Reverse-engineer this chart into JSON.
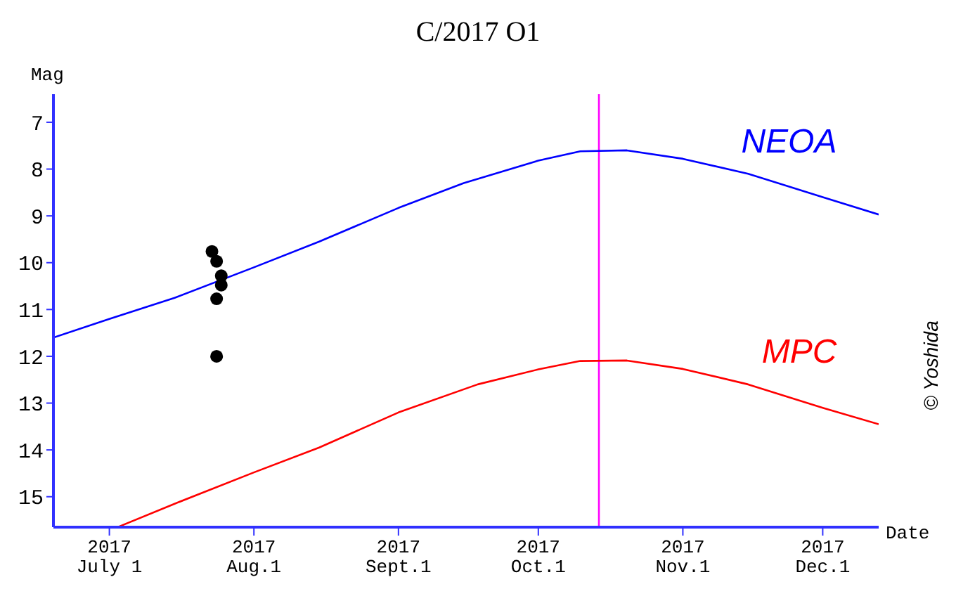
{
  "chart_data": {
    "type": "line",
    "title": "C/2017 O1",
    "xlabel": "Date",
    "ylabel": "Mag",
    "annotations": [
      "© Yoshida"
    ],
    "xlim": [
      "2017-06-19",
      "2017-12-13"
    ],
    "xticks": [
      {
        "value": "2017-07-01",
        "label": "2017 July 1"
      },
      {
        "value": "2017-08-01",
        "label": "2017 Aug.1"
      },
      {
        "value": "2017-09-01",
        "label": "2017 Sept.1"
      },
      {
        "value": "2017-10-01",
        "label": "2017 Oct.1"
      },
      {
        "value": "2017-11-01",
        "label": "2017 Nov.1"
      },
      {
        "value": "2017-12-01",
        "label": "2017 Dec.1"
      }
    ],
    "ylim": [
      15.65,
      6.4
    ],
    "yticks": [
      7,
      8,
      9,
      10,
      11,
      12,
      13,
      14,
      15
    ],
    "grid": false,
    "legend": false,
    "marker": "none",
    "line_style": "solid",
    "ref_lines": [
      {
        "axis": "x",
        "value": "2017-10-14",
        "color": "#ff00ff"
      }
    ],
    "series": [
      {
        "name": "NEOA",
        "color": "#0000ff",
        "x": [
          "2017-06-19",
          "2017-07-01",
          "2017-07-15",
          "2017-08-01",
          "2017-08-15",
          "2017-09-01",
          "2017-09-15",
          "2017-10-01",
          "2017-10-10",
          "2017-10-20",
          "2017-11-01",
          "2017-11-15",
          "2017-12-01",
          "2017-12-13"
        ],
        "values": [
          11.6,
          11.2,
          10.75,
          10.1,
          9.55,
          8.83,
          8.3,
          7.82,
          7.62,
          7.6,
          7.78,
          8.1,
          8.6,
          8.97
        ]
      },
      {
        "name": "MPC",
        "color": "#ff0000",
        "x": [
          "2017-07-03",
          "2017-07-15",
          "2017-08-01",
          "2017-08-15",
          "2017-09-01",
          "2017-09-18",
          "2017-10-01",
          "2017-10-10",
          "2017-10-20",
          "2017-11-01",
          "2017-11-15",
          "2017-12-01",
          "2017-12-13"
        ],
        "values": [
          15.64,
          15.15,
          14.48,
          13.95,
          13.2,
          12.6,
          12.28,
          12.1,
          12.09,
          12.27,
          12.6,
          13.1,
          13.45
        ]
      },
      {
        "type": "scatter",
        "color": "#000000",
        "marker": "circle",
        "x": [
          "2017-07-23",
          "2017-07-24",
          "2017-07-25",
          "2017-07-25",
          "2017-07-24",
          "2017-07-24"
        ],
        "values": [
          9.76,
          9.97,
          10.28,
          10.48,
          10.77,
          12.0
        ]
      }
    ]
  }
}
